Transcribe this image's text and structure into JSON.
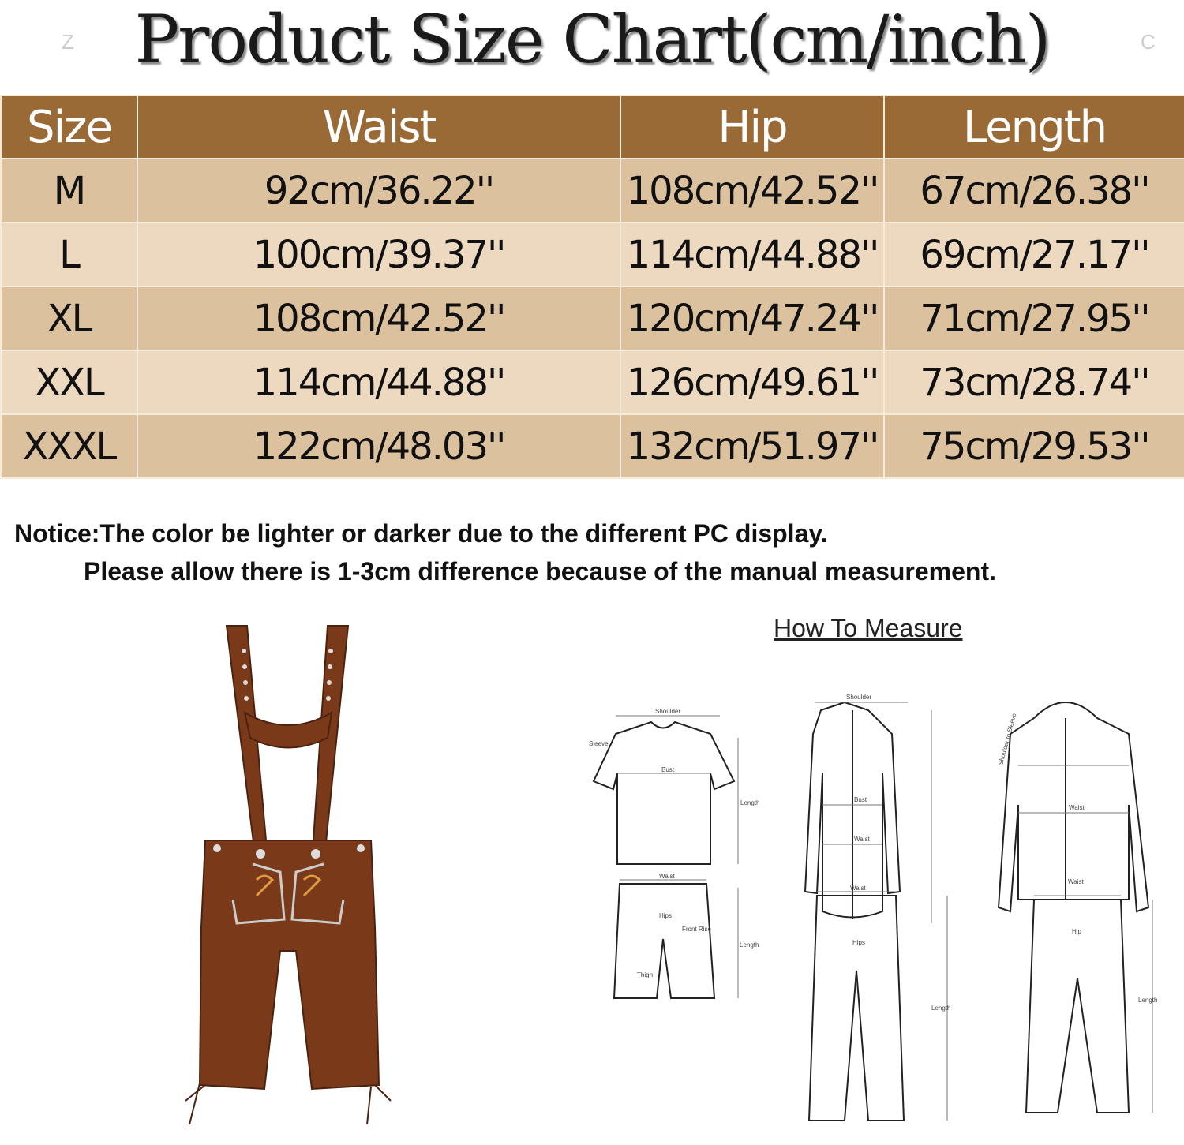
{
  "title": "Product Size Chart(cm/inch)",
  "watermarks": [
    "Z",
    "C"
  ],
  "table": {
    "headers": [
      "Size",
      "Waist",
      "Hip",
      "Length"
    ],
    "rows": [
      [
        "M",
        "92cm/36.22''",
        "108cm/42.52''",
        "67cm/26.38''"
      ],
      [
        "L",
        "100cm/39.37''",
        "114cm/44.88''",
        "69cm/27.17''"
      ],
      [
        "XL",
        "108cm/42.52''",
        "120cm/47.24''",
        "71cm/27.95''"
      ],
      [
        "XXL",
        "114cm/44.88''",
        "126cm/49.61''",
        "73cm/28.74''"
      ],
      [
        "XXXL",
        "122cm/48.03''",
        "132cm/51.97''",
        "75cm/29.53''"
      ]
    ]
  },
  "notice": {
    "line1": "Notice:The color be lighter or darker due to the different PC display.",
    "line2": "Please allow there is 1-3cm difference because of the manual measurement."
  },
  "how_to_measure": {
    "title": "How To Measure",
    "labels": {
      "shoulder": "Shoulder",
      "sleeve": "Sleeve",
      "bust": "Bust",
      "length": "Length",
      "waist": "Waist",
      "hips": "Hips",
      "hip": "Hip",
      "front_rise": "Front Rise",
      "thigh": "Thigh",
      "shoulder_to_sleeve": "Shoulder to Sleeve"
    }
  },
  "colors": {
    "header": "#9a6a36",
    "row_dark": "#dcc19f",
    "row_light": "#ecd9c0",
    "product": "#7a3a1a"
  }
}
